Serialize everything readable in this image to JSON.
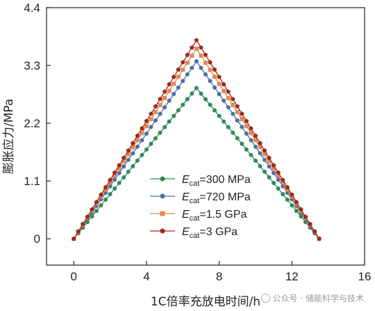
{
  "chart_data": {
    "type": "line",
    "title": "",
    "xlabel": "1C倍率充放电时间/h",
    "ylabel": "膨胀应力/MPa",
    "xlim": [
      -1.5,
      16
    ],
    "ylim": [
      -0.5,
      4.4
    ],
    "xticks": [
      0,
      4,
      8,
      12,
      16
    ],
    "xtick_labels": [
      "0",
      "4",
      "8",
      "12",
      "16"
    ],
    "yticks": [
      0,
      1.1,
      2.2,
      3.3,
      4.4
    ],
    "ytick_labels": [
      "0",
      "1.1",
      "2.2",
      "3.3",
      "4.4"
    ],
    "legend_position": "center",
    "grid": false,
    "series": [
      {
        "name": "E_cat=300 MPa",
        "name_main": "E",
        "name_sub": "cat",
        "name_rest": "=300 MPa",
        "color": "#2e8b57",
        "marker": "circle",
        "peak_x": 6.75,
        "peak_y": 2.87,
        "end_x": 13.5,
        "x": [
          0,
          0.5,
          1,
          1.5,
          2,
          2.5,
          3,
          3.5,
          4,
          4.5,
          5,
          5.5,
          6,
          6.75,
          7.5,
          8,
          8.5,
          9,
          9.5,
          10,
          10.5,
          11,
          11.5,
          12,
          12.5,
          13,
          13.5
        ],
        "y": [
          0,
          0.21,
          0.43,
          0.64,
          0.85,
          1.06,
          1.28,
          1.49,
          1.7,
          1.91,
          2.13,
          2.34,
          2.55,
          2.87,
          2.55,
          2.34,
          2.13,
          1.91,
          1.7,
          1.49,
          1.28,
          1.06,
          0.85,
          0.64,
          0.43,
          0.21,
          0
        ]
      },
      {
        "name": "E_cat=720 MPa",
        "name_main": "E",
        "name_sub": "cat",
        "name_rest": "=720 MPa",
        "color": "#4a6fa5",
        "marker": "circle",
        "peak_x": 6.75,
        "peak_y": 3.38,
        "end_x": 13.5,
        "x": [
          0,
          0.5,
          1,
          1.5,
          2,
          2.5,
          3,
          3.5,
          4,
          4.5,
          5,
          5.5,
          6,
          6.75,
          7.5,
          8,
          8.5,
          9,
          9.5,
          10,
          10.5,
          11,
          11.5,
          12,
          12.5,
          13,
          13.5
        ],
        "y": [
          0,
          0.25,
          0.5,
          0.75,
          1.0,
          1.25,
          1.5,
          1.75,
          2.0,
          2.25,
          2.5,
          2.75,
          3.0,
          3.38,
          3.0,
          2.75,
          2.5,
          2.25,
          2.0,
          1.75,
          1.5,
          1.25,
          1.0,
          0.75,
          0.5,
          0.25,
          0
        ]
      },
      {
        "name": "E_cat=1.5 GPa",
        "name_main": "E",
        "name_sub": "cat",
        "name_rest": "=1.5 GPa",
        "color": "#e0895a",
        "marker": "square",
        "peak_x": 6.75,
        "peak_y": 3.62,
        "end_x": 13.5,
        "x": [
          0,
          0.5,
          1,
          1.5,
          2,
          2.5,
          3,
          3.5,
          4,
          4.5,
          5,
          5.5,
          6,
          6.75,
          7.5,
          8,
          8.5,
          9,
          9.5,
          10,
          10.5,
          11,
          11.5,
          12,
          12.5,
          13,
          13.5
        ],
        "y": [
          0,
          0.27,
          0.54,
          0.8,
          1.07,
          1.34,
          1.61,
          1.88,
          2.14,
          2.41,
          2.68,
          2.95,
          3.22,
          3.62,
          3.22,
          2.95,
          2.68,
          2.41,
          2.14,
          1.88,
          1.61,
          1.34,
          1.07,
          0.8,
          0.54,
          0.27,
          0
        ]
      },
      {
        "name": "E_cat=3 GPa",
        "name_main": "E",
        "name_sub": "cat",
        "name_rest": "=3 GPa",
        "color": "#9b2a1a",
        "marker": "pentagon",
        "peak_x": 6.75,
        "peak_y": 3.78,
        "end_x": 13.5,
        "x": [
          0,
          0.5,
          1,
          1.5,
          2,
          2.5,
          3,
          3.5,
          4,
          4.5,
          5,
          5.5,
          6,
          6.75,
          7.5,
          8,
          8.5,
          9,
          9.5,
          10,
          10.5,
          11,
          11.5,
          12,
          12.5,
          13,
          13.5
        ],
        "y": [
          0,
          0.28,
          0.56,
          0.84,
          1.12,
          1.4,
          1.68,
          1.96,
          2.24,
          2.52,
          2.8,
          3.08,
          3.36,
          3.78,
          3.36,
          3.08,
          2.8,
          2.52,
          2.24,
          1.96,
          1.68,
          1.4,
          1.12,
          0.84,
          0.56,
          0.28,
          0
        ]
      }
    ]
  },
  "watermark": {
    "text": "公众号 · 储能科学与技术",
    "icon": "wechat-icon"
  }
}
